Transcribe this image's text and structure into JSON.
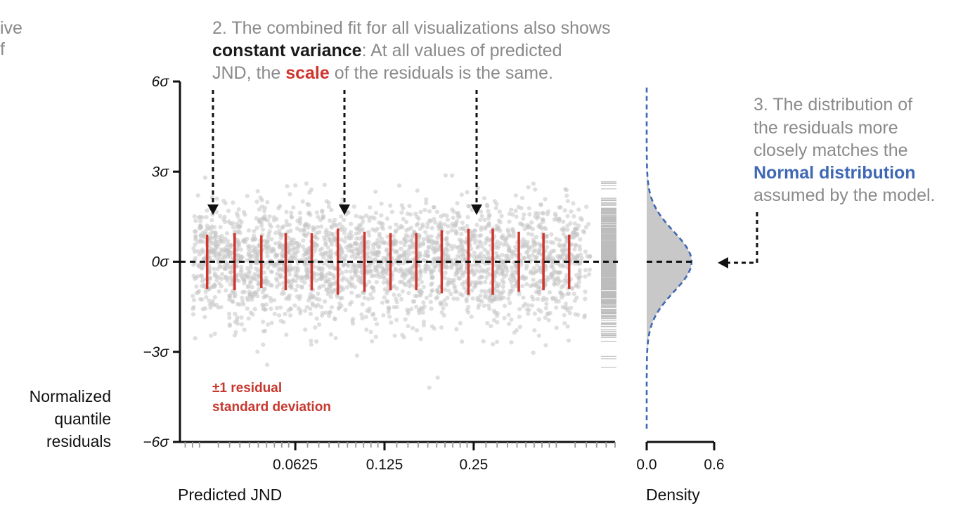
{
  "annotations": {
    "left_fragment": [
      "ive",
      "f"
    ],
    "top": {
      "line1": "2. The combined fit for all visualizations also shows",
      "line2_bold": "constant variance",
      "line2_rest": ": At all values of predicted",
      "line3_pre": "JND, the ",
      "line3_scale": "scale",
      "line3_post": " of the residuals is the same."
    },
    "right": {
      "line1": "3. The distribution of",
      "line2": "the residuals more",
      "line3": "closely matches the",
      "line4_blue": "Normal distribution",
      "line5": "assumed by the model."
    }
  },
  "colors": {
    "points": "#c4c4c4",
    "sd_bars": "#d0342c",
    "normal_curve": "#3f68b4",
    "density_fill": "#c8c8c8",
    "axis": "#111111"
  },
  "chart_data": [
    {
      "type": "scatter",
      "title": "",
      "xlabel": "Predicted JND",
      "ylabel_lines": [
        "Normalized",
        "quantile",
        "residuals"
      ],
      "x_scale": "log2",
      "xlim": [
        0.0255,
        0.75
      ],
      "x_ticks": [
        0.0625,
        0.125,
        0.25
      ],
      "x_tick_labels": [
        "0.0625",
        "0.125",
        "0.25"
      ],
      "ylim": [
        -6,
        6
      ],
      "y_ticks": [
        6,
        3,
        0,
        -3,
        -6
      ],
      "y_tick_labels": [
        "6σ",
        "3σ",
        "0σ",
        "−3σ",
        "−6σ"
      ],
      "reference_line_y": 0,
      "sd_bar_label": [
        "±1 residual",
        "standard deviation"
      ],
      "sd_bars": {
        "x": [
          0.0315,
          0.039,
          0.048,
          0.058,
          0.071,
          0.087,
          0.107,
          0.131,
          0.16,
          0.195,
          0.24,
          0.29,
          0.355,
          0.43,
          0.525
        ],
        "sd": [
          0.9,
          0.95,
          0.88,
          0.95,
          0.95,
          1.1,
          1.0,
          0.95,
          0.95,
          1.05,
          1.1,
          1.1,
          1.0,
          0.95,
          0.9
        ]
      },
      "point_cloud": {
        "x_range": [
          0.028,
          0.62
        ],
        "n_points": 2600,
        "residual_sd": 1.0,
        "min": -4.4,
        "max": 2.9
      },
      "rug": {
        "min": -4.4,
        "max": 2.9
      }
    },
    {
      "type": "area",
      "title": "",
      "xlabel": "Density",
      "xlim": [
        0,
        0.6
      ],
      "x_ticks": [
        0.0,
        0.6
      ],
      "x_tick_labels": [
        "0.0",
        "0.6"
      ],
      "ylim": [
        -6,
        6
      ],
      "series": [
        {
          "kind": "histogram_density",
          "mean": 0,
          "sd": 1
        },
        {
          "kind": "normal_pdf",
          "mean": 0,
          "sd": 1
        }
      ]
    }
  ]
}
